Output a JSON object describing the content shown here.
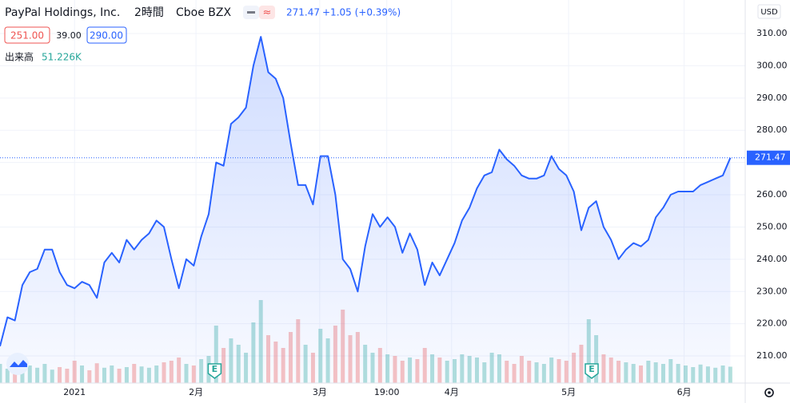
{
  "header": {
    "title": "PayPal Holdings, Inc.",
    "interval": "2時間",
    "exchange": "Cboe BZX",
    "change": "+1.05 (+0.39%)",
    "bid": "251.00",
    "spread": "39.00",
    "ask": "290.00",
    "currency": "USD"
  },
  "chart_data": {
    "type": "line",
    "x": [
      0,
      1,
      2,
      3,
      4,
      5,
      6,
      7,
      8,
      9,
      10,
      11,
      12,
      13,
      14,
      15,
      16,
      17,
      18,
      19,
      20,
      21,
      22,
      23,
      24,
      25,
      26,
      27,
      28,
      29,
      30,
      31,
      32,
      33,
      34,
      35,
      36,
      37,
      38,
      39,
      40,
      41,
      42,
      43,
      44,
      45,
      46,
      47,
      48,
      49,
      50,
      51,
      52,
      53,
      54,
      55,
      56,
      57,
      58,
      59,
      60,
      61,
      62,
      63,
      64,
      65,
      66,
      67,
      68,
      69,
      70,
      71,
      72,
      73,
      74,
      75,
      76,
      77,
      78,
      79,
      80,
      81,
      82,
      83,
      84,
      85,
      86,
      87,
      88,
      89,
      90,
      91,
      92,
      93,
      94,
      95,
      96,
      97,
      98
    ],
    "series": [
      {
        "name": "PayPal",
        "color": "#2962ff",
        "values": [
          213,
          222,
          221,
          232,
          236,
          237,
          243,
          243,
          236,
          232,
          231,
          233,
          232,
          228,
          239,
          242,
          239,
          246,
          243,
          246,
          248,
          252,
          250,
          240,
          231,
          240,
          238,
          247,
          254,
          270,
          269,
          282,
          284,
          287,
          300,
          309,
          298,
          296,
          290,
          276,
          263,
          263,
          257,
          272,
          272,
          260,
          240,
          237,
          230,
          244,
          254,
          250,
          253,
          250,
          242,
          248,
          243,
          232,
          239,
          235,
          240,
          245,
          252,
          256,
          262,
          266,
          267,
          274,
          271,
          269,
          266,
          265,
          265,
          266,
          272,
          268,
          266,
          261,
          249,
          256,
          258,
          250,
          246,
          240,
          243,
          245,
          244,
          246,
          253,
          256,
          260,
          261,
          261,
          261,
          263,
          264,
          265,
          266,
          271.47
        ]
      },
      {
        "name": "出来高",
        "up_color": "#26a69a",
        "down_color": "#ef5350",
        "axis": "volume",
        "value_labels_last": "51.226K",
        "values": [
          60,
          45,
          50,
          40,
          55,
          48,
          60,
          42,
          50,
          45,
          70,
          55,
          40,
          62,
          48,
          55,
          45,
          50,
          60,
          52,
          48,
          55,
          65,
          70,
          80,
          60,
          55,
          75,
          85,
          180,
          110,
          140,
          120,
          95,
          190,
          260,
          150,
          130,
          110,
          160,
          200,
          120,
          95,
          170,
          140,
          180,
          230,
          150,
          160,
          120,
          95,
          110,
          90,
          85,
          70,
          80,
          75,
          110,
          90,
          80,
          70,
          75,
          90,
          85,
          80,
          65,
          95,
          90,
          70,
          60,
          85,
          70,
          65,
          60,
          80,
          75,
          70,
          95,
          120,
          200,
          150,
          90,
          80,
          70,
          65,
          60,
          55,
          70,
          65,
          60,
          75,
          60,
          55,
          50,
          58,
          52,
          48,
          55,
          51.226
        ]
      }
    ],
    "xlim": [
      0,
      100
    ],
    "xticks": [
      {
        "value": 10,
        "label": "2021"
      },
      {
        "value": 26.3,
        "label": "2月"
      },
      {
        "value": 42.9,
        "label": "3月"
      },
      {
        "value": 51.9,
        "label": "19:00"
      },
      {
        "value": 60.6,
        "label": "4月"
      },
      {
        "value": 76.3,
        "label": "5月"
      },
      {
        "value": 91.8,
        "label": "6月"
      }
    ],
    "ylim": [
      201.6,
      320.4
    ],
    "yticks": [
      {
        "value": 210,
        "label": "210.00"
      },
      {
        "value": 220,
        "label": "220.00"
      },
      {
        "value": 230,
        "label": "230.00"
      },
      {
        "value": 240,
        "label": "240.00"
      },
      {
        "value": 250,
        "label": "250.00"
      },
      {
        "value": 260,
        "label": "260.00"
      },
      {
        "value": 270,
        "label": "270.00"
      },
      {
        "value": 280,
        "label": "280.00"
      },
      {
        "value": 290,
        "label": "290.00"
      },
      {
        "value": 300,
        "label": "300.00"
      },
      {
        "value": 310,
        "label": "310.00"
      }
    ],
    "volume_lim": [
      0,
      400
    ],
    "events": [
      {
        "x": 28.8,
        "label": "E"
      },
      {
        "x": 79.4,
        "label": "E"
      }
    ],
    "grid": true
  }
}
